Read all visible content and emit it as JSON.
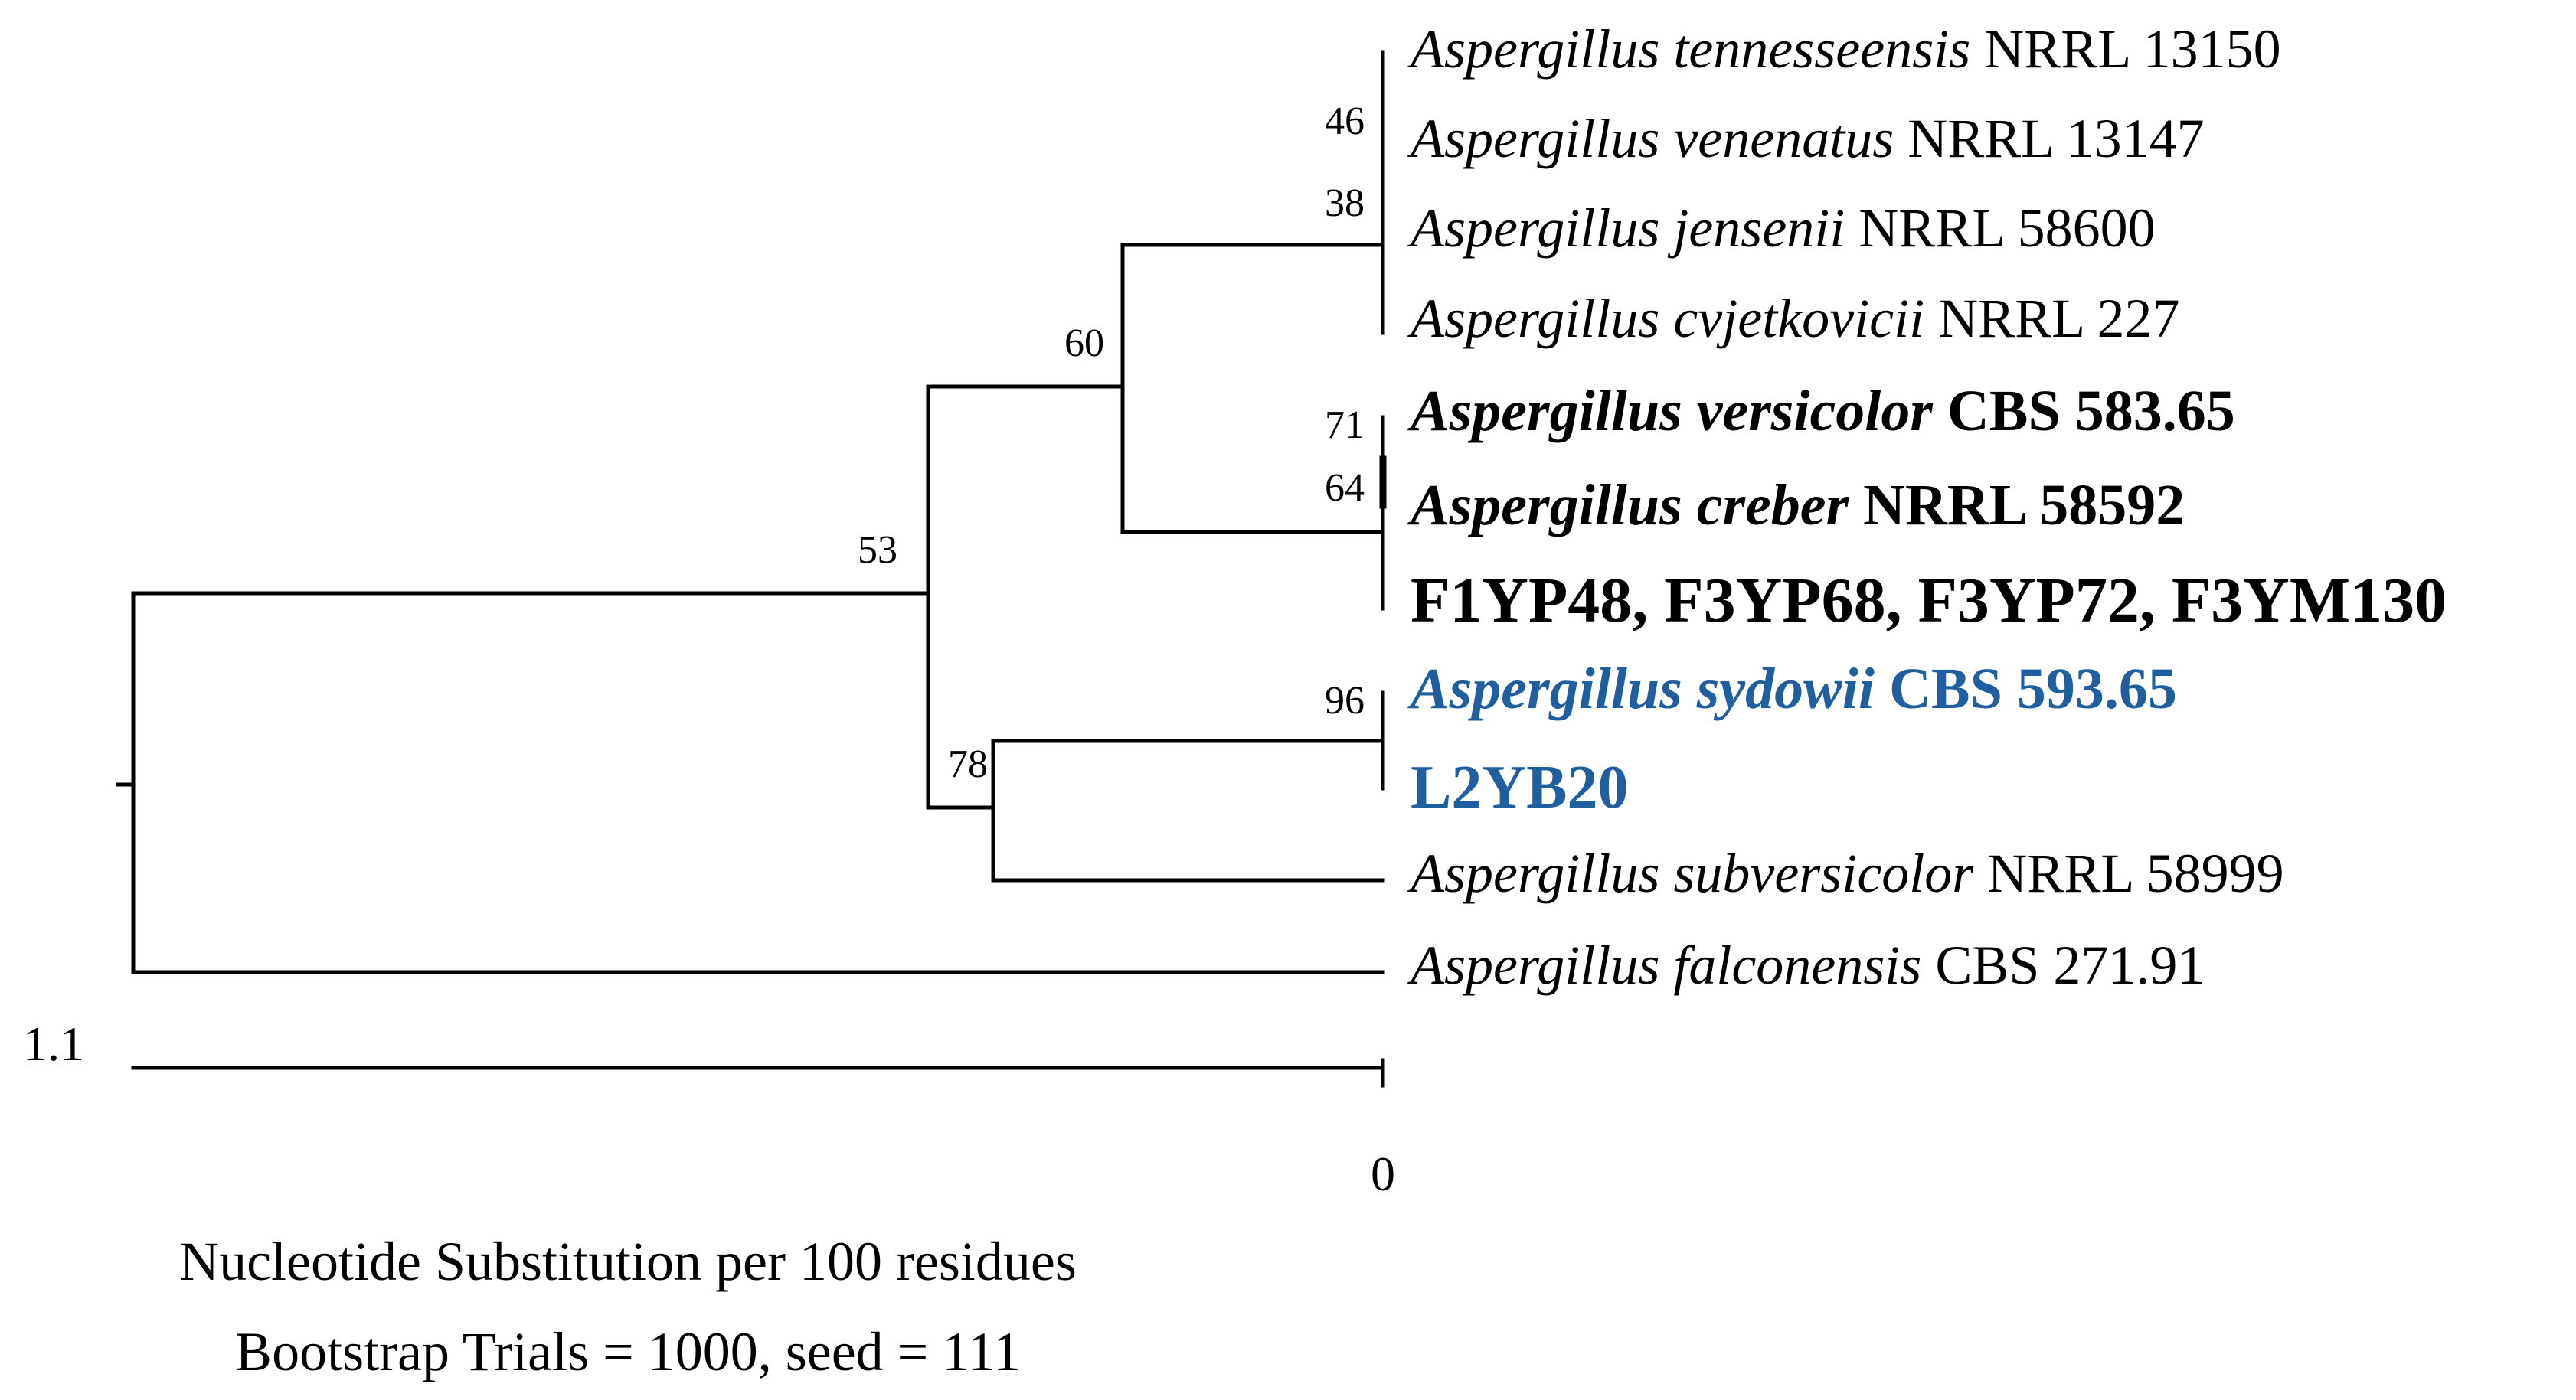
{
  "figure": {
    "highlight_color": "#1f5fa0",
    "text_color": "#000000",
    "root_label": "1.1",
    "scale_end_label": "0",
    "caption_line1": "Nucleotide Substitution per 100 residues",
    "caption_line2": "Bootstrap Trials = 1000, seed = 111"
  },
  "bootstrap": {
    "n46": "46",
    "n38": "38",
    "n60": "60",
    "n53": "53",
    "n71": "71",
    "n64": "64",
    "n96": "96",
    "n78": "78"
  },
  "taxa": [
    {
      "genus": "Aspergillus tennesseensis",
      "strain": "NRRL 13150"
    },
    {
      "genus": "Aspergillus venenatus",
      "strain": "NRRL 13147"
    },
    {
      "genus": "Aspergillus jensenii",
      "strain": "NRRL 58600"
    },
    {
      "genus": "Aspergillus cvjetkovicii",
      "strain": "NRRL 227"
    },
    {
      "genus": "Aspergillus versicolor",
      "strain": "CBS 583.65"
    },
    {
      "genus": "Aspergillus creber",
      "strain": "NRRL 58592"
    },
    {
      "genus": "",
      "strain": "F1YP48, F3YP68, F3YP72, F3YM130"
    },
    {
      "genus": "Aspergillus sydowii",
      "strain": "CBS 593.65"
    },
    {
      "genus": "",
      "strain": "L2YB20"
    },
    {
      "genus": "Aspergillus subversicolor",
      "strain": "NRRL 58999"
    },
    {
      "genus": "Aspergillus falconensis",
      "strain": "CBS 271.91"
    }
  ]
}
